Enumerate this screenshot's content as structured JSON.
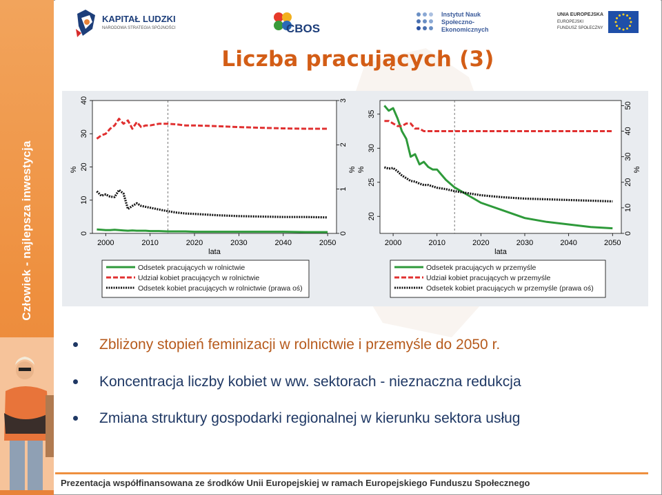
{
  "sidebar": {
    "vertical_text": "Człowiek - najlepsza inwestycja"
  },
  "logos": {
    "kl": {
      "title": "KAPITAŁ LUDZKI",
      "subtitle": "NARODOWA STRATEGIA SPÓJNOŚCI"
    },
    "cbos": {
      "text": "CBOS"
    },
    "isns": {
      "line1": "Instytut Nauk",
      "line2": "Społeczno-",
      "line3": "Ekonomicznych"
    },
    "ue": {
      "line1": "UNIA EUROPEJSKA",
      "line2": "EUROPEJSKI",
      "line3": "FUNDUSZ SPOŁECZNY"
    }
  },
  "slide_title": "Liczba pracujących (3)",
  "bullets": [
    {
      "text": "Zbliżony stopień feminizacji w rolnictwie i przemyśle do 2050 r.",
      "color": "#b65a1c"
    },
    {
      "text": "Koncentracja liczby kobiet w ww. sektorach - nieznaczna redukcja",
      "color": "#1f3864"
    },
    {
      "text": "Zmiana struktury gospodarki regionalnej w kierunku sektora usług",
      "color": "#1f3864"
    }
  ],
  "footer": "Prezentacja współfinansowana ze środków Unii Europejskiej w ramach Europejskiego Funduszu Społecznego",
  "colors": {
    "green": "#2e9a3a",
    "red": "#e03030",
    "black": "#111111",
    "accent": "#ee8f3e",
    "title": "#d35d16"
  },
  "chart_data": [
    {
      "type": "line",
      "xlabel": "lata",
      "ylabel_left": "%",
      "ylabel_right": "%",
      "x_ticks": [
        2000,
        2010,
        2020,
        2030,
        2040,
        2050
      ],
      "xlim": [
        1997,
        2052
      ],
      "ylim_left": [
        0,
        40
      ],
      "left_ticks": [
        0,
        10,
        20,
        30,
        40
      ],
      "ylim_right": [
        0,
        3
      ],
      "right_ticks": [
        0,
        1,
        2,
        3
      ],
      "vline_x": 2014,
      "x": [
        1998,
        1999,
        2000,
        2001,
        2002,
        2003,
        2004,
        2005,
        2006,
        2007,
        2008,
        2009,
        2010,
        2012,
        2014,
        2016,
        2018,
        2020,
        2025,
        2030,
        2035,
        2040,
        2045,
        2050
      ],
      "series": [
        {
          "name": "Odsetek pracujących w rolnictwie",
          "axis": "left",
          "color": "#2e9a3a",
          "style": "solid",
          "values": [
            1.2,
            1.1,
            1.0,
            1.0,
            1.1,
            1.0,
            0.9,
            0.8,
            0.9,
            0.8,
            0.8,
            0.8,
            0.7,
            0.7,
            0.6,
            0.6,
            0.6,
            0.5,
            0.5,
            0.5,
            0.5,
            0.5,
            0.4,
            0.4
          ]
        },
        {
          "name": "Udział kobiet pracujących w rolnictwie",
          "axis": "left",
          "color": "#e03030",
          "style": "dashed",
          "values": [
            28.5,
            29.5,
            30.0,
            31.5,
            32.5,
            34.5,
            33.0,
            34.0,
            31.5,
            33.5,
            32.0,
            32.5,
            32.5,
            33.0,
            33.0,
            32.8,
            32.5,
            32.5,
            32.3,
            32.0,
            31.8,
            31.6,
            31.5,
            31.5
          ]
        },
        {
          "name": "Odsetek kobiet pracujących w rolnictwie (prawa oś)",
          "axis": "right",
          "color": "#111111",
          "style": "dotted",
          "values": [
            0.95,
            0.85,
            0.88,
            0.83,
            0.82,
            0.98,
            0.9,
            0.55,
            0.62,
            0.68,
            0.62,
            0.6,
            0.58,
            0.54,
            0.5,
            0.47,
            0.45,
            0.44,
            0.41,
            0.39,
            0.38,
            0.37,
            0.37,
            0.36
          ]
        }
      ]
    },
    {
      "type": "line",
      "xlabel": "lata",
      "ylabel_left": "%",
      "ylabel_right": "%",
      "x_ticks": [
        2000,
        2010,
        2020,
        2030,
        2040,
        2050
      ],
      "xlim": [
        1997,
        2052
      ],
      "ylim_left": [
        17.5,
        37
      ],
      "left_ticks": [
        20,
        25,
        30,
        35
      ],
      "ylim_right": [
        0,
        52
      ],
      "right_ticks": [
        0,
        10,
        20,
        30,
        40,
        50
      ],
      "vline_x": 2014,
      "x": [
        1998,
        1999,
        2000,
        2001,
        2002,
        2003,
        2004,
        2005,
        2006,
        2007,
        2008,
        2009,
        2010,
        2012,
        2014,
        2016,
        2018,
        2020,
        2025,
        2030,
        2035,
        2040,
        2045,
        2050
      ],
      "series": [
        {
          "name": "Odsetek pracujących w przemyśle",
          "axis": "right",
          "color": "#2e9a3a",
          "style": "solid",
          "values": [
            50,
            48,
            49,
            45,
            40,
            37,
            30,
            31,
            27,
            28,
            26,
            25,
            25,
            21,
            18,
            16,
            14,
            12,
            9,
            6,
            4.5,
            3.5,
            2.5,
            2
          ]
        },
        {
          "name": "Udział kobiet pracujących w przemyśle",
          "axis": "right",
          "color": "#e03030",
          "style": "dashed",
          "values": [
            44,
            44,
            43,
            42,
            42,
            43,
            43,
            41,
            41,
            40,
            40,
            40,
            40,
            40,
            40,
            40,
            40,
            40,
            40,
            40,
            40,
            40,
            40,
            40
          ]
        },
        {
          "name": "Odsetek kobiet pracujących w przemyśle (prawa oś)",
          "axis": "left",
          "color": "#111111",
          "style": "dotted",
          "values": [
            27.2,
            27.0,
            27.1,
            26.6,
            26.0,
            25.6,
            25.2,
            25.1,
            24.8,
            24.6,
            24.6,
            24.4,
            24.2,
            24.0,
            23.7,
            23.5,
            23.3,
            23.1,
            22.8,
            22.6,
            22.5,
            22.4,
            22.3,
            22.2
          ]
        }
      ]
    }
  ]
}
